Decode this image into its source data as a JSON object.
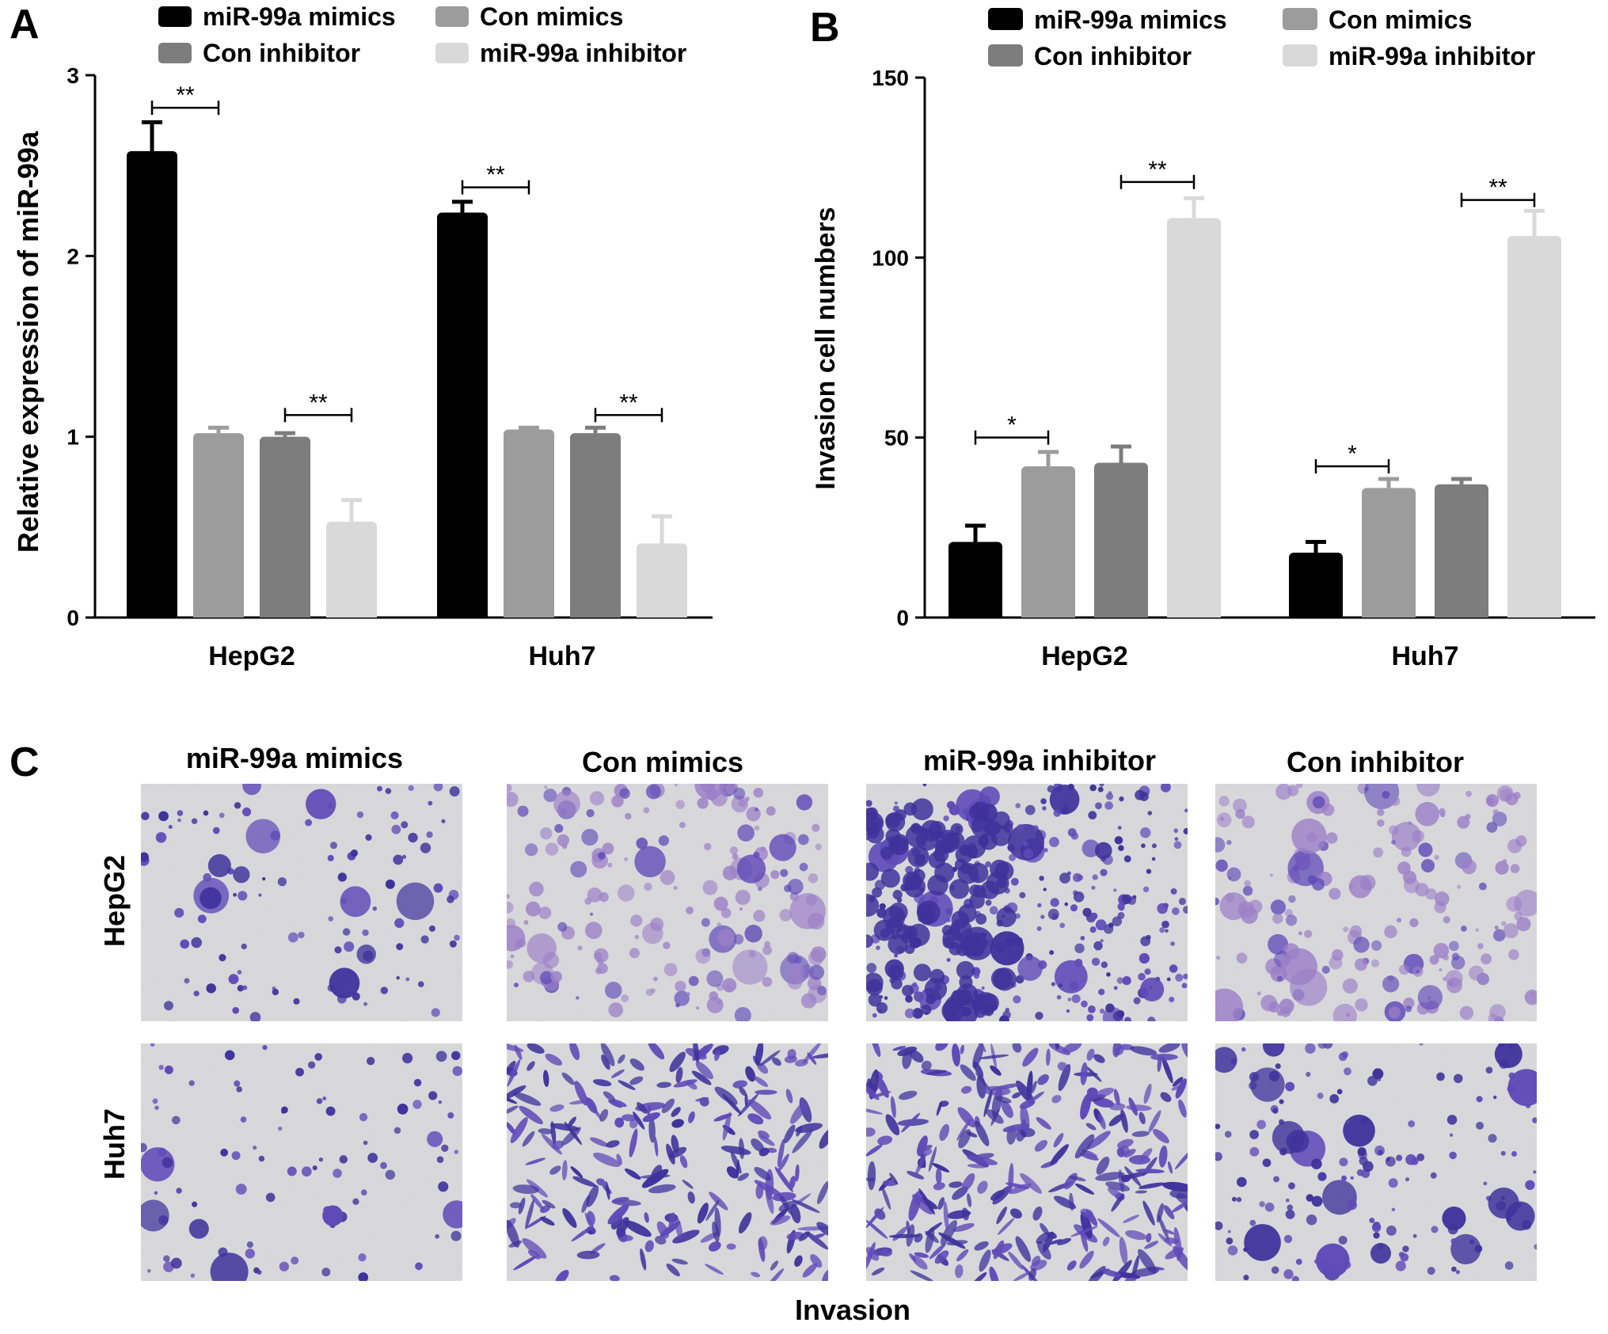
{
  "figure": {
    "panel_labels": [
      "A",
      "B",
      "C"
    ],
    "series_colors": [
      "#000000",
      "#9c9c9c",
      "#7d7d7d",
      "#d9d9d9"
    ],
    "legend_order": [
      0,
      2,
      1,
      3
    ]
  },
  "chart_data": [
    {
      "type": "bar",
      "panel": "A",
      "categories": [
        "HepG2",
        "Huh7"
      ],
      "series": [
        {
          "name": "miR-99a mimics",
          "values": [
            2.58,
            2.24
          ],
          "errors": [
            0.16,
            0.06
          ]
        },
        {
          "name": "Con mimics",
          "values": [
            1.02,
            1.04
          ],
          "errors": [
            0.03,
            0.01
          ]
        },
        {
          "name": "Con inhibitor",
          "values": [
            1.0,
            1.02
          ],
          "errors": [
            0.02,
            0.03
          ]
        },
        {
          "name": "miR-99a inhibitor",
          "values": [
            0.53,
            0.41
          ],
          "errors": [
            0.12,
            0.15
          ]
        }
      ],
      "title": "",
      "xlabel": "",
      "ylabel": "Relative expression of miR-99a",
      "ylim": [
        0,
        3
      ],
      "yticks": [
        "0",
        "1",
        "2",
        "3"
      ],
      "ytick_values": [
        0,
        1,
        2,
        3
      ],
      "grid": false,
      "legend_position": "top",
      "significance": [
        {
          "category": 0,
          "from_series": 0,
          "to_series": 1,
          "level": 2.82,
          "label": "**"
        },
        {
          "category": 0,
          "from_series": 2,
          "to_series": 3,
          "level": 1.12,
          "label": "**"
        },
        {
          "category": 1,
          "from_series": 0,
          "to_series": 1,
          "level": 2.38,
          "label": "**"
        },
        {
          "category": 1,
          "from_series": 2,
          "to_series": 3,
          "level": 1.12,
          "label": "**"
        }
      ]
    },
    {
      "type": "bar",
      "panel": "B",
      "categories": [
        "HepG2",
        "Huh7"
      ],
      "series": [
        {
          "name": "miR-99a mimics",
          "values": [
            21,
            18
          ],
          "errors": [
            4.5,
            3
          ]
        },
        {
          "name": "Con mimics",
          "values": [
            42,
            36
          ],
          "errors": [
            4,
            2.5
          ]
        },
        {
          "name": "Con inhibitor",
          "values": [
            43,
            37
          ],
          "errors": [
            4.5,
            1.5
          ]
        },
        {
          "name": "miR-99a inhibitor",
          "values": [
            111,
            106
          ],
          "errors": [
            5.5,
            7
          ]
        }
      ],
      "title": "",
      "xlabel": "",
      "ylabel": "Invasion cell numbers",
      "ylim": [
        0,
        150
      ],
      "yticks": [
        "0",
        "50",
        "100",
        "150"
      ],
      "ytick_values": [
        0,
        50,
        100,
        150
      ],
      "grid": false,
      "legend_position": "top",
      "significance": [
        {
          "category": 0,
          "from_series": 0,
          "to_series": 1,
          "level": 50,
          "label": "*"
        },
        {
          "category": 0,
          "from_series": 2,
          "to_series": 3,
          "level": 121,
          "label": "**"
        },
        {
          "category": 1,
          "from_series": 0,
          "to_series": 1,
          "level": 42,
          "label": "*"
        },
        {
          "category": 1,
          "from_series": 2,
          "to_series": 3,
          "level": 116,
          "label": "**"
        }
      ]
    }
  ],
  "panel_c": {
    "column_titles": [
      "miR-99a mimics",
      "Con mimics",
      "miR-99a inhibitor",
      "Con inhibitor"
    ],
    "row_labels": [
      "HepG2",
      "Huh7"
    ],
    "footer_label": "Invasion",
    "stain_colors": {
      "dark": "#3a2a9a",
      "medium": "#5a45b8",
      "light": "#9a7cc8",
      "background": "#d9d9dc"
    },
    "densities": [
      [
        0.25,
        0.55,
        0.95,
        0.55
      ],
      [
        0.2,
        0.75,
        0.95,
        0.45
      ]
    ]
  }
}
